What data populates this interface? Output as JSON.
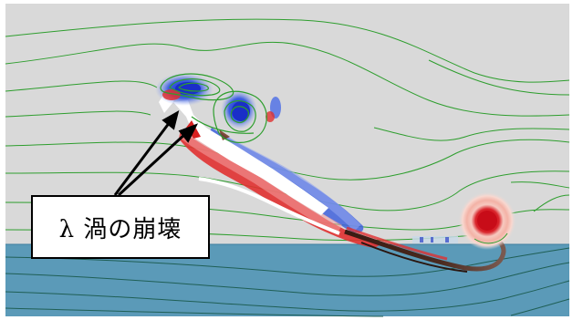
{
  "annotation": {
    "label": "λ 渦の崩壊"
  },
  "colors": {
    "background_gray": "#d9d9d9",
    "wall_blue": "#5b9ab8",
    "streamline_green": "#2e9e2e",
    "positive_vorticity": "#d81a1a",
    "negative_vorticity": "#1a3fd0",
    "arrow": "#000000"
  }
}
